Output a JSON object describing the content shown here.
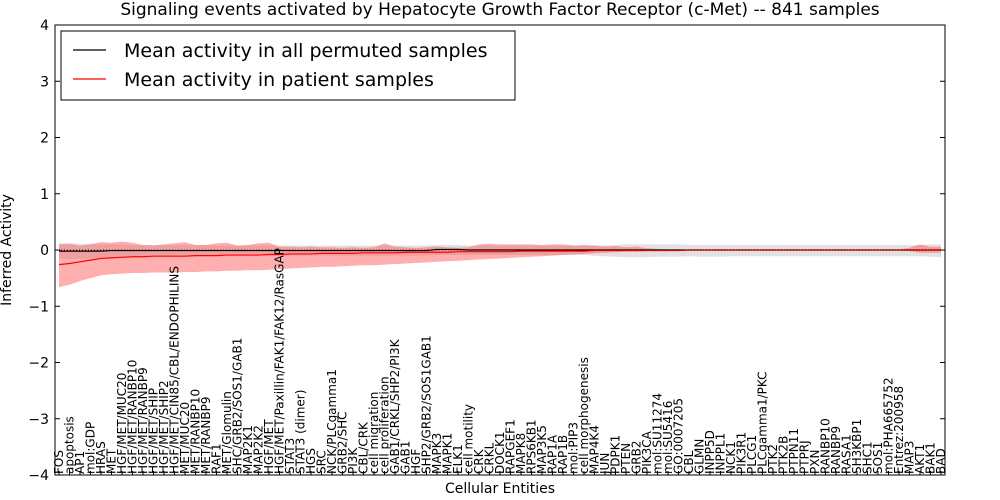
{
  "chart_data": {
    "type": "line",
    "title": "Signaling events activated by Hepatocyte Growth Factor Receptor (c-Met) -- 841 samples",
    "xlabel": "Cellular Entities",
    "ylabel": "Inferred Activity",
    "ylim": [
      -4,
      4
    ],
    "yticks": [
      -4,
      -3,
      -2,
      -1,
      0,
      1,
      2,
      3,
      4
    ],
    "ytick_labels": [
      "−4",
      "−3",
      "−2",
      "−1",
      "0",
      "1",
      "2",
      "3",
      "4"
    ],
    "legend": {
      "placement": "top-left",
      "entries": [
        "Mean activity in all permuted samples",
        "Mean activity in patient samples"
      ]
    },
    "categories": [
      "FOS",
      "apoptosis",
      "AP1",
      "mol:GDP",
      "HRAS",
      "MET",
      "HGF/MET/MUC20",
      "HGF/MET/RANBP10",
      "HGF/MET/RANBP9",
      "HGF/MET/SHIP",
      "HGF/MET/SHIP2",
      "HGF/MET/CIN85/CBL/ENDOPHILINS",
      "MET/MUC20",
      "MET/RANBP10",
      "MET/RANBP9",
      "RAF1",
      "MET/Glomulin",
      "SHC/GRB2/SOS1/GAB1",
      "MAP2K1",
      "MAP2K2",
      "HGF/MET",
      "HGF/MET/Paxillin/FAK1/FAK12/RasGAP",
      "STAT3",
      "STAT3 (dimer)",
      "HGS",
      "SRC",
      "NCK/PLCgamma1",
      "GRB2/SHC",
      "PI3K",
      "CBL/CRK",
      "cell migration",
      "cell proliferation",
      "GAB1/CRKL/SHP2/PI3K",
      "GAB1",
      "HGF",
      "SHP2/GRB2/SOS1GAB1",
      "MAPK3",
      "MAPK1",
      "ELK1",
      "cell motility",
      "CRK",
      "CRKL",
      "DOCK1",
      "RAPGEF1",
      "MAPK8",
      "RPS6KB1",
      "MAP3K5",
      "RAP1A",
      "RAP1B",
      "mol:PIP3",
      "cell morphogenesis",
      "MAP4K4",
      "JUN",
      "PDPK1",
      "PTEN",
      "GRB2",
      "PIK3CA",
      "mol:SU11274",
      "mol:SU5416",
      "GO:0007205",
      "CBL",
      "GLMN",
      "INPP5D",
      "INPPL1",
      "NCK1",
      "PIK3R1",
      "PLCG1",
      "PLCgamma1/PKC",
      "PTK2",
      "PTK2B",
      "PTPN11",
      "PTPRJ",
      "PXN",
      "RANBP10",
      "RANBP9",
      "RASA1",
      "SH3KBP1",
      "SHC1",
      "SOS1",
      "mol:PHA665752",
      "Entrez:200958",
      "MAP3",
      "AKT1",
      "BAK1",
      "BAD"
    ],
    "series": [
      {
        "name": "Mean activity in patient samples",
        "color": "#ff0000",
        "values": [
          -0.26,
          -0.24,
          -0.21,
          -0.18,
          -0.15,
          -0.14,
          -0.13,
          -0.12,
          -0.12,
          -0.11,
          -0.11,
          -0.11,
          -0.11,
          -0.1,
          -0.1,
          -0.1,
          -0.09,
          -0.09,
          -0.09,
          -0.09,
          -0.08,
          -0.08,
          -0.07,
          -0.07,
          -0.07,
          -0.06,
          -0.06,
          -0.06,
          -0.06,
          -0.05,
          -0.05,
          -0.05,
          -0.05,
          -0.04,
          -0.04,
          -0.04,
          -0.04,
          -0.04,
          -0.03,
          -0.03,
          -0.03,
          -0.03,
          -0.03,
          -0.03,
          -0.02,
          -0.02,
          -0.02,
          -0.02,
          -0.02,
          -0.02,
          -0.02,
          -0.01,
          -0.01,
          -0.01,
          -0.01,
          -0.01,
          -0.01,
          -0.01,
          -0.01,
          -0.01,
          0,
          0,
          0,
          0,
          0,
          0,
          0,
          0,
          0,
          0,
          0,
          0,
          0,
          0,
          0,
          0,
          0,
          0,
          0,
          0,
          0,
          0,
          0,
          0,
          0
        ],
        "lower": [
          -0.66,
          -0.62,
          -0.55,
          -0.5,
          -0.45,
          -0.43,
          -0.42,
          -0.41,
          -0.41,
          -0.4,
          -0.4,
          -0.4,
          -0.39,
          -0.39,
          -0.38,
          -0.38,
          -0.37,
          -0.37,
          -0.36,
          -0.36,
          -0.35,
          -0.34,
          -0.33,
          -0.32,
          -0.31,
          -0.3,
          -0.3,
          -0.29,
          -0.28,
          -0.27,
          -0.27,
          -0.26,
          -0.25,
          -0.24,
          -0.23,
          -0.22,
          -0.21,
          -0.2,
          -0.19,
          -0.18,
          -0.17,
          -0.16,
          -0.15,
          -0.14,
          -0.13,
          -0.12,
          -0.11,
          -0.1,
          -0.09,
          -0.08,
          -0.07,
          -0.06,
          -0.05,
          -0.04,
          -0.03,
          -0.03,
          -0.02,
          -0.02,
          -0.02,
          -0.01,
          -0.01,
          -0.01,
          -0.01,
          -0.01,
          -0.01,
          -0.01,
          -0.01,
          -0.01,
          -0.01,
          -0.01,
          -0.01,
          -0.01,
          -0.01,
          -0.01,
          -0.01,
          -0.01,
          -0.01,
          -0.01,
          -0.01,
          -0.01,
          -0.01,
          -0.02,
          -0.05,
          -0.05,
          -0.05
        ],
        "upper": [
          0.1,
          0.11,
          0.08,
          0.1,
          0.14,
          0.13,
          0.15,
          0.13,
          0.09,
          0.08,
          0.1,
          0.12,
          0.14,
          0.09,
          0.09,
          0.12,
          0.13,
          0.08,
          0.09,
          0.12,
          0.13,
          0.06,
          0.06,
          0.05,
          0.06,
          0.05,
          0.05,
          0.04,
          0.05,
          0.04,
          0.05,
          0.12,
          0.06,
          0.05,
          0.04,
          0.05,
          0.06,
          0.05,
          0.04,
          0.05,
          0.1,
          0.11,
          0.1,
          0.1,
          0.1,
          0.1,
          0.09,
          0.1,
          0.1,
          0.08,
          0.09,
          0.08,
          0.06,
          0.07,
          0.05,
          0.06,
          0.03,
          0.02,
          0.01,
          0.01,
          0.01,
          0.01,
          0.01,
          0.01,
          0.01,
          0.01,
          0.01,
          0.01,
          0.01,
          0.01,
          0.01,
          0.01,
          0.01,
          0.01,
          0.01,
          0.01,
          0.01,
          0.01,
          0.01,
          0.01,
          0.01,
          0.04,
          0.1,
          0.06,
          0.06
        ]
      },
      {
        "name": "Mean activity in all permuted samples",
        "color": "#000000",
        "values": [
          -0.02,
          -0.02,
          -0.02,
          -0.02,
          -0.02,
          -0.01,
          -0.01,
          -0.01,
          -0.01,
          -0.01,
          -0.01,
          -0.01,
          -0.01,
          -0.01,
          -0.01,
          -0.01,
          -0.01,
          -0.01,
          -0.01,
          -0.01,
          -0.01,
          -0.01,
          -0.01,
          -0.01,
          -0.01,
          -0.01,
          -0.01,
          -0.01,
          -0.01,
          -0.01,
          -0.01,
          -0.01,
          -0.01,
          -0.01,
          -0.01,
          -0.01,
          0.01,
          0.01,
          0.01,
          0,
          0,
          0,
          0,
          0,
          0,
          0,
          0,
          0,
          0,
          0,
          0,
          0,
          0,
          0,
          0,
          0,
          0,
          0,
          0,
          0,
          0,
          0,
          0,
          0,
          0,
          0,
          0,
          0,
          0,
          0,
          0,
          0,
          0,
          0,
          0,
          0,
          0,
          0,
          0,
          0,
          0,
          0,
          0,
          0,
          0
        ],
        "lower": [
          -0.16,
          -0.16,
          -0.15,
          -0.15,
          -0.14,
          -0.13,
          -0.12,
          -0.12,
          -0.12,
          -0.11,
          -0.11,
          -0.11,
          -0.11,
          -0.11,
          -0.11,
          -0.1,
          -0.1,
          -0.1,
          -0.1,
          -0.1,
          -0.1,
          -0.1,
          -0.1,
          -0.1,
          -0.1,
          -0.1,
          -0.1,
          -0.1,
          -0.1,
          -0.1,
          -0.1,
          -0.1,
          -0.1,
          -0.1,
          -0.1,
          -0.1,
          -0.09,
          -0.09,
          -0.09,
          -0.09,
          -0.09,
          -0.09,
          -0.09,
          -0.09,
          -0.09,
          -0.09,
          -0.09,
          -0.09,
          -0.09,
          -0.09,
          -0.09,
          -0.1,
          -0.11,
          -0.12,
          -0.13,
          -0.13,
          -0.13,
          -0.12,
          -0.12,
          -0.12,
          -0.11,
          -0.12,
          -0.12,
          -0.12,
          -0.11,
          -0.11,
          -0.11,
          -0.11,
          -0.11,
          -0.11,
          -0.11,
          -0.11,
          -0.11,
          -0.11,
          -0.11,
          -0.11,
          -0.11,
          -0.11,
          -0.11,
          -0.11,
          -0.11,
          -0.11,
          -0.11,
          -0.12,
          -0.13
        ],
        "upper": [
          0.12,
          0.12,
          0.11,
          0.11,
          0.1,
          0.1,
          0.1,
          0.09,
          0.09,
          0.09,
          0.09,
          0.09,
          0.09,
          0.09,
          0.09,
          0.08,
          0.08,
          0.08,
          0.08,
          0.08,
          0.08,
          0.08,
          0.08,
          0.08,
          0.08,
          0.08,
          0.08,
          0.08,
          0.08,
          0.08,
          0.08,
          0.08,
          0.08,
          0.08,
          0.08,
          0.08,
          0.09,
          0.09,
          0.09,
          0.08,
          0.08,
          0.08,
          0.08,
          0.08,
          0.08,
          0.08,
          0.08,
          0.08,
          0.08,
          0.08,
          0.08,
          0.08,
          0.08,
          0.09,
          0.1,
          0.1,
          0.1,
          0.1,
          0.1,
          0.1,
          0.09,
          0.09,
          0.09,
          0.09,
          0.09,
          0.09,
          0.09,
          0.09,
          0.09,
          0.09,
          0.09,
          0.09,
          0.09,
          0.09,
          0.09,
          0.09,
          0.09,
          0.09,
          0.09,
          0.09,
          0.09,
          0.09,
          0.09,
          0.1,
          0.1
        ]
      }
    ]
  }
}
